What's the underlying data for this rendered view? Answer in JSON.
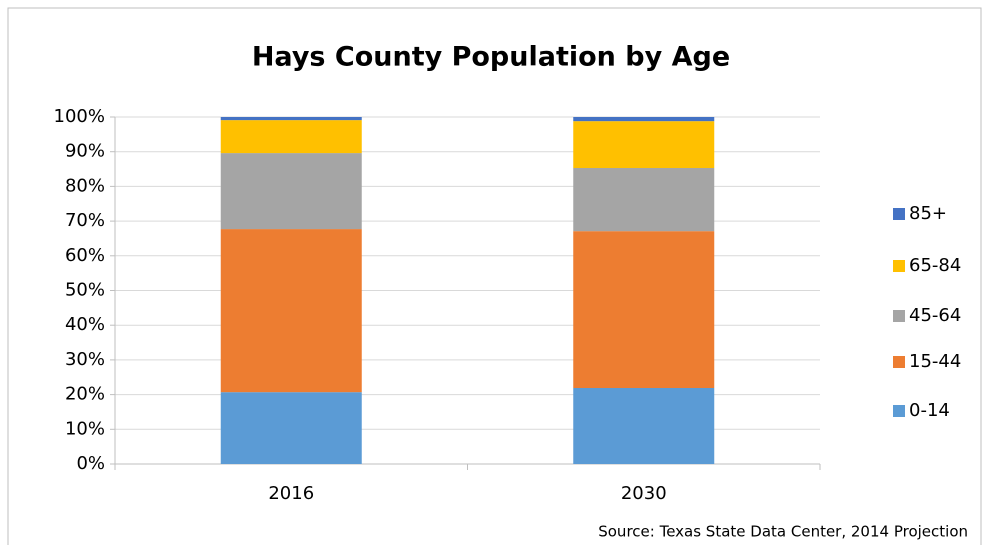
{
  "chart_data": {
    "type": "stacked_bar",
    "title": "Hays County Population by Age",
    "source": "Source: Texas State Data Center, 2014 Projection",
    "categories": [
      "2016",
      "2030"
    ],
    "series": [
      {
        "name": "0-14",
        "color": "#5b9bd5",
        "values": [
          20.7,
          21.9
        ]
      },
      {
        "name": "15-44",
        "color": "#ed7d31",
        "values": [
          47.0,
          45.2
        ]
      },
      {
        "name": "45-64",
        "color": "#a5a5a5",
        "values": [
          21.9,
          18.2
        ]
      },
      {
        "name": "65-84",
        "color": "#ffc000",
        "values": [
          9.5,
          13.5
        ]
      },
      {
        "name": "85+",
        "color": "#4472c4",
        "values": [
          0.9,
          1.2
        ]
      }
    ],
    "ylim": [
      0,
      100
    ],
    "yticks": [
      {
        "value": 0,
        "label": "0%"
      },
      {
        "value": 10,
        "label": "10%"
      },
      {
        "value": 20,
        "label": "20%"
      },
      {
        "value": 30,
        "label": "30%"
      },
      {
        "value": 40,
        "label": "40%"
      },
      {
        "value": 50,
        "label": "50%"
      },
      {
        "value": 60,
        "label": "60%"
      },
      {
        "value": 70,
        "label": "70%"
      },
      {
        "value": 80,
        "label": "80%"
      },
      {
        "value": 90,
        "label": "90%"
      },
      {
        "value": 100,
        "label": "100%"
      }
    ],
    "grid": true,
    "legend": "right"
  }
}
